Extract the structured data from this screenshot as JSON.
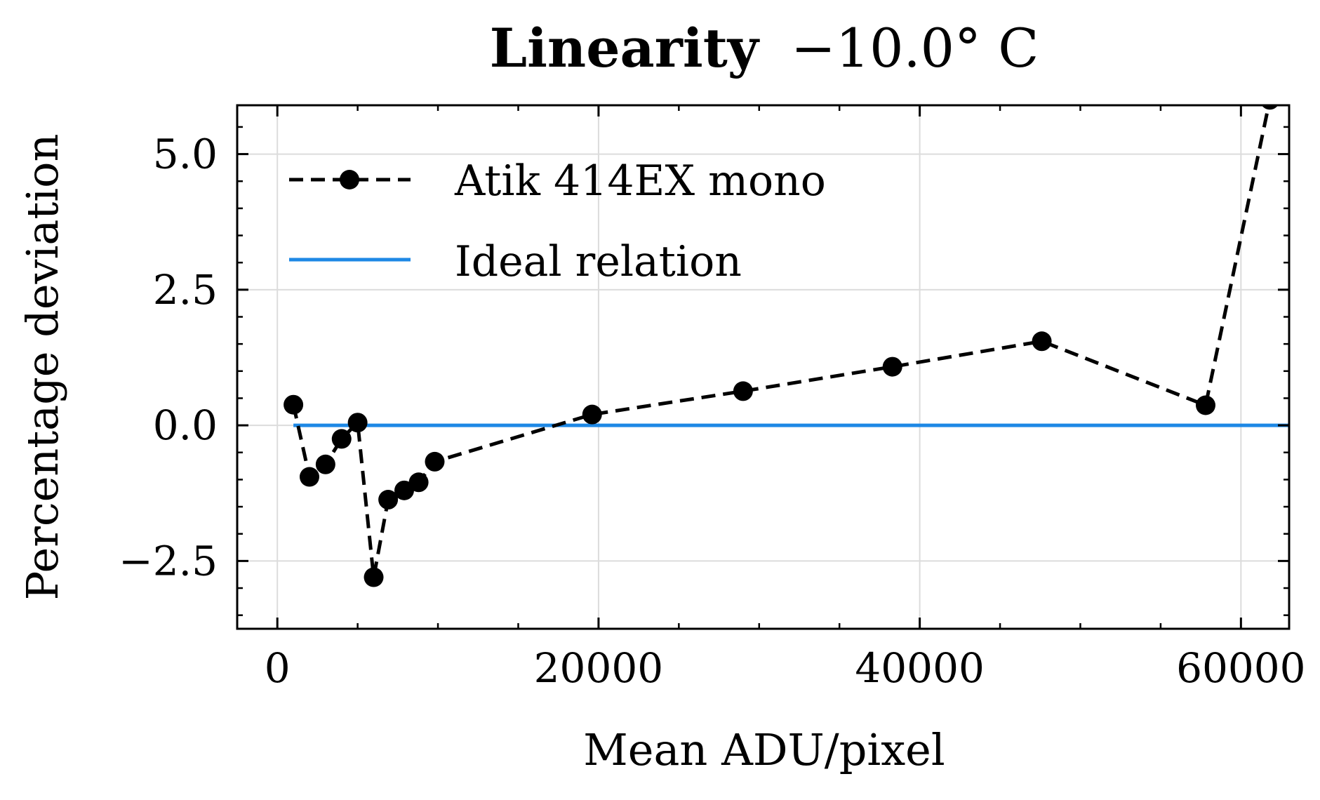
{
  "chart_data": {
    "type": "line",
    "title_bold": "Linearity",
    "title_rest": "−10.0° C",
    "xlabel": "Mean ADU/pixel",
    "ylabel": "Percentage deviation",
    "xlim": [
      -2500,
      63000
    ],
    "ylim": [
      -3.75,
      5.9
    ],
    "xticks": [
      0,
      20000,
      40000,
      60000
    ],
    "xtick_labels": [
      "0",
      "20000",
      "40000",
      "60000"
    ],
    "yticks": [
      -2.5,
      0.0,
      2.5,
      5.0
    ],
    "ytick_labels": [
      "−2.5",
      "0.0",
      "2.5",
      "5.0"
    ],
    "x_minor_step": 5000,
    "y_minor_step": 0.5,
    "grid": true,
    "legend_position": "upper-left",
    "series": [
      {
        "name": "Atik 414EX mono",
        "style": "dashed-with-markers",
        "color": "#000000",
        "x": [
          1000,
          2000,
          3000,
          4000,
          5000,
          6000,
          6900,
          7900,
          8800,
          9800,
          19600,
          29000,
          38300,
          47600,
          57800,
          61800
        ],
        "y": [
          0.38,
          -0.95,
          -0.72,
          -0.25,
          0.05,
          -2.8,
          -1.37,
          -1.2,
          -1.05,
          -0.67,
          0.2,
          0.63,
          1.08,
          1.55,
          0.37,
          6.0
        ]
      },
      {
        "name": "Ideal relation",
        "style": "solid",
        "color": "#1e88e5",
        "x": [
          1000,
          63000
        ],
        "y": [
          0,
          0
        ]
      }
    ]
  }
}
